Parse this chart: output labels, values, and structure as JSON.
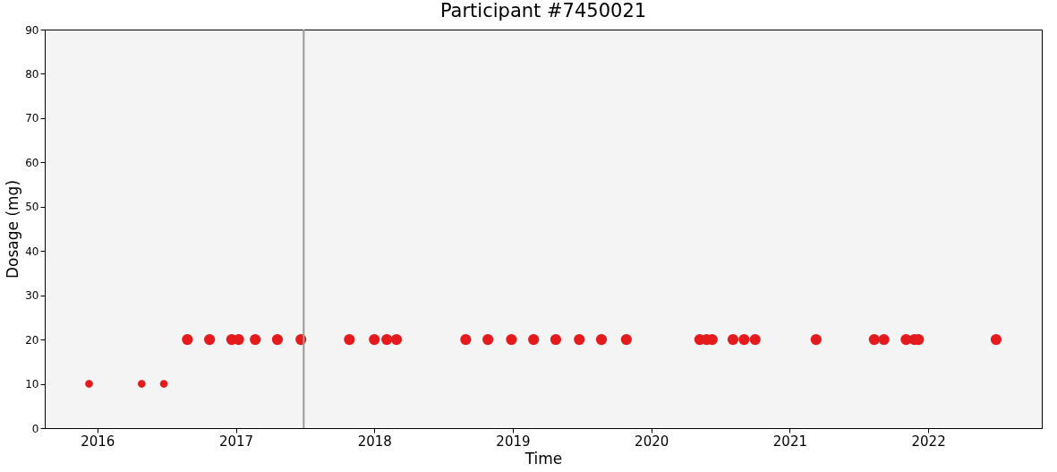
{
  "chart_data": {
    "type": "bubble",
    "title": "Participant #7450021",
    "xlabel": "Time",
    "ylabel": "Dosage (mg)",
    "x": [
      2015.94,
      2016.32,
      2016.48,
      2016.65,
      2016.81,
      2016.97,
      2017.02,
      2017.14,
      2017.3,
      2017.47,
      2017.82,
      2018.0,
      2018.09,
      2018.16,
      2018.66,
      2018.82,
      2018.99,
      2019.15,
      2019.31,
      2019.48,
      2019.64,
      2019.82,
      2020.35,
      2020.4,
      2020.44,
      2020.59,
      2020.67,
      2020.75,
      2021.19,
      2021.61,
      2021.68,
      2021.84,
      2021.9,
      2021.93,
      2022.49
    ],
    "series": [
      {
        "color": "#e41a1c",
        "values": [
          10,
          10,
          10,
          20,
          20,
          20,
          20,
          20,
          20,
          20,
          20,
          20,
          20,
          20,
          20,
          20,
          20,
          20,
          20,
          20,
          20,
          20,
          20,
          20,
          20,
          20,
          20,
          20,
          20,
          20,
          20,
          20,
          20,
          20,
          20
        ],
        "sizes": [
          0.5,
          0.5,
          0.5,
          1,
          1,
          1,
          1,
          1,
          1,
          1,
          1,
          1,
          1,
          1,
          1,
          1,
          1,
          1,
          1,
          1,
          1,
          1,
          1,
          1,
          1,
          1,
          1,
          1,
          1,
          1,
          1,
          1,
          1,
          1,
          1
        ]
      }
    ],
    "xlim": [
      2015.62,
      2022.82
    ],
    "xticks": [
      2016,
      2017,
      2018,
      2019,
      2020,
      2021,
      2022
    ],
    "ylim": [
      0,
      90
    ],
    "yticks": [
      0,
      10,
      20,
      30,
      40,
      50,
      60,
      70,
      80,
      90
    ],
    "ref_lines": [
      {
        "axis": "x",
        "value": 2017.49,
        "color": "#999999"
      }
    ],
    "grid": false
  }
}
